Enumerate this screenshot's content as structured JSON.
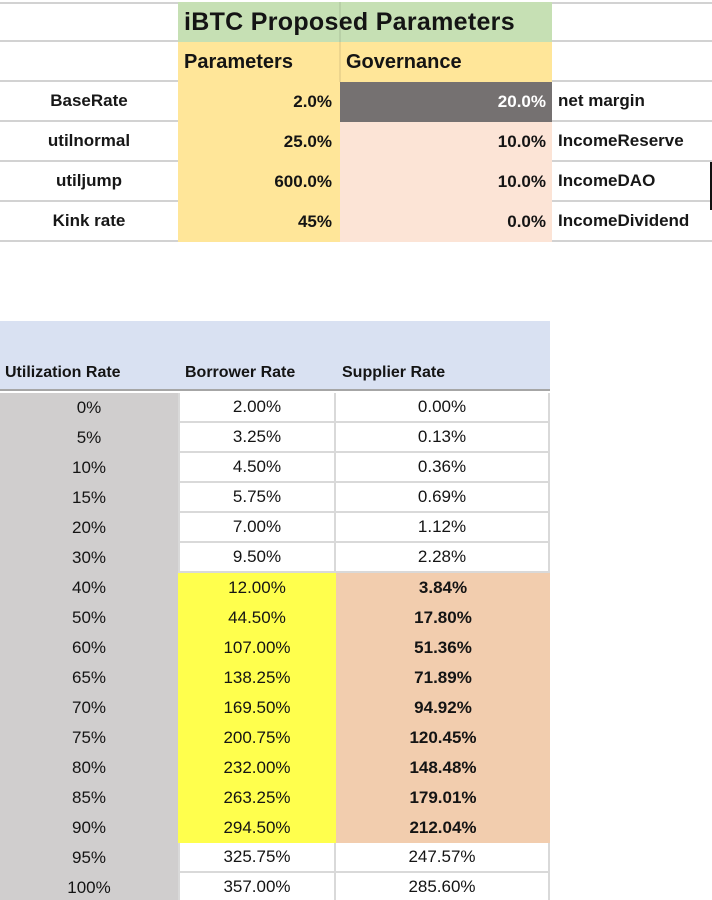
{
  "top_table": {
    "title": "iBTC Proposed Parameters",
    "column_headers": {
      "parameters": "Parameters",
      "governance": "Governance"
    },
    "rows": [
      {
        "label": "BaseRate",
        "parameters": "2.0%",
        "governance": "20.0%",
        "governance_label": "net margin"
      },
      {
        "label": "utilnormal",
        "parameters": "25.0%",
        "governance": "10.0%",
        "governance_label": "IncomeReserve"
      },
      {
        "label": "utiljump",
        "parameters": "600.0%",
        "governance": "10.0%",
        "governance_label": "IncomeDAO"
      },
      {
        "label": "Kink rate",
        "parameters": "45%",
        "governance": "0.0%",
        "governance_label": "IncomeDividend"
      }
    ]
  },
  "rate_table": {
    "headers": [
      "Utilization Rate",
      "Borrower Rate",
      "Supplier Rate"
    ],
    "rows": [
      {
        "utilization": "0%",
        "borrower": "2.00%",
        "supplier": "0.00%",
        "highlighted": false
      },
      {
        "utilization": "5%",
        "borrower": "3.25%",
        "supplier": "0.13%",
        "highlighted": false
      },
      {
        "utilization": "10%",
        "borrower": "4.50%",
        "supplier": "0.36%",
        "highlighted": false
      },
      {
        "utilization": "15%",
        "borrower": "5.75%",
        "supplier": "0.69%",
        "highlighted": false
      },
      {
        "utilization": "20%",
        "borrower": "7.00%",
        "supplier": "1.12%",
        "highlighted": false
      },
      {
        "utilization": "30%",
        "borrower": "9.50%",
        "supplier": "2.28%",
        "highlighted": false
      },
      {
        "utilization": "40%",
        "borrower": "12.00%",
        "supplier": "3.84%",
        "highlighted": true
      },
      {
        "utilization": "50%",
        "borrower": "44.50%",
        "supplier": "17.80%",
        "highlighted": true
      },
      {
        "utilization": "60%",
        "borrower": "107.00%",
        "supplier": "51.36%",
        "highlighted": true
      },
      {
        "utilization": "65%",
        "borrower": "138.25%",
        "supplier": "71.89%",
        "highlighted": true
      },
      {
        "utilization": "70%",
        "borrower": "169.50%",
        "supplier": "94.92%",
        "highlighted": true
      },
      {
        "utilization": "75%",
        "borrower": "200.75%",
        "supplier": "120.45%",
        "highlighted": true
      },
      {
        "utilization": "80%",
        "borrower": "232.00%",
        "supplier": "148.48%",
        "highlighted": true
      },
      {
        "utilization": "85%",
        "borrower": "263.25%",
        "supplier": "179.01%",
        "highlighted": true
      },
      {
        "utilization": "90%",
        "borrower": "294.50%",
        "supplier": "212.04%",
        "highlighted": true
      },
      {
        "utilization": "95%",
        "borrower": "325.75%",
        "supplier": "247.57%",
        "highlighted": false
      },
      {
        "utilization": "100%",
        "borrower": "357.00%",
        "supplier": "285.60%",
        "highlighted": false
      }
    ]
  },
  "colors": {
    "title_bg": "#c6e0b4",
    "parameters_bg": "#ffe699",
    "net_margin_cell_bg": "#757171",
    "net_margin_cell_text": "#ffffff",
    "governance_cells_bg": "#fce4d6",
    "rate_header_band_bg": "#d9e1f2",
    "utilization_col_bg": "#d0cece",
    "borrower_highlight_bg": "#ffff4d",
    "supplier_highlight_bg": "#f2cdae"
  }
}
